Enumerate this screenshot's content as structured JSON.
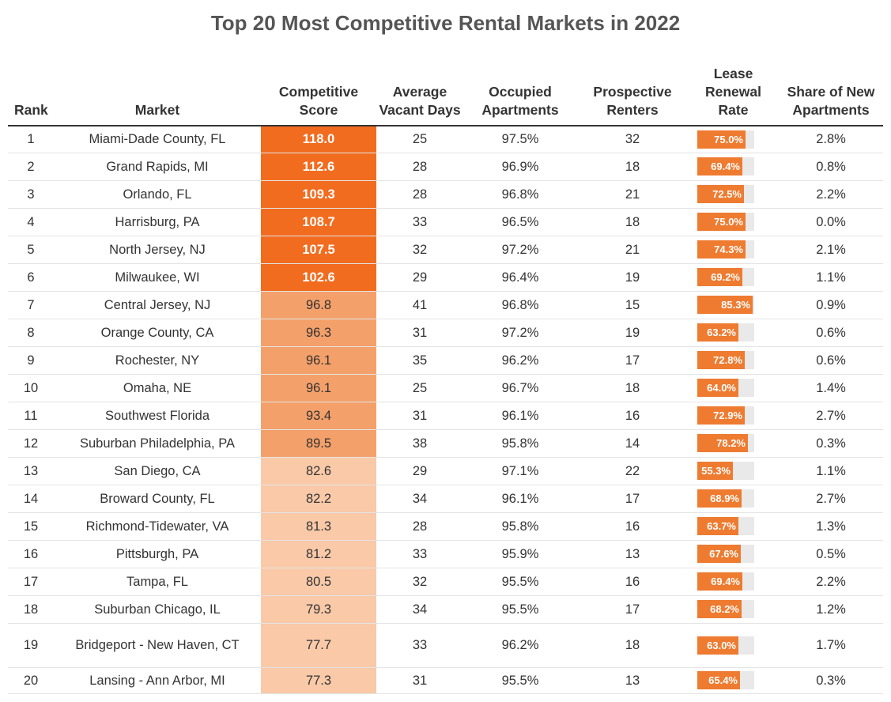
{
  "chart_data": {
    "type": "table",
    "title": "Top 20 Most Competitive Rental Markets in 2022",
    "columns": [
      "Rank",
      "Market",
      "Competitive Score",
      "Average Vacant Days",
      "Occupied Apartments",
      "Prospective Renters",
      "Lease Renewal Rate",
      "Share of New Apartments"
    ],
    "rows": [
      {
        "rank": "1",
        "market": "Miami-Dade County, FL",
        "score": 118.0,
        "score_label": "118.0",
        "vacant_days": "25",
        "occupied": "97.5%",
        "renters": "32",
        "renewal": 75.0,
        "renewal_label": "75.0%",
        "new_share": "2.8%"
      },
      {
        "rank": "2",
        "market": "Grand Rapids, MI",
        "score": 112.6,
        "score_label": "112.6",
        "vacant_days": "28",
        "occupied": "96.9%",
        "renters": "18",
        "renewal": 69.4,
        "renewal_label": "69.4%",
        "new_share": "0.8%"
      },
      {
        "rank": "3",
        "market": "Orlando, FL",
        "score": 109.3,
        "score_label": "109.3",
        "vacant_days": "28",
        "occupied": "96.8%",
        "renters": "21",
        "renewal": 72.5,
        "renewal_label": "72.5%",
        "new_share": "2.2%"
      },
      {
        "rank": "4",
        "market": "Harrisburg, PA",
        "score": 108.7,
        "score_label": "108.7",
        "vacant_days": "33",
        "occupied": "96.5%",
        "renters": "18",
        "renewal": 75.0,
        "renewal_label": "75.0%",
        "new_share": "0.0%"
      },
      {
        "rank": "5",
        "market": "North Jersey, NJ",
        "score": 107.5,
        "score_label": "107.5",
        "vacant_days": "32",
        "occupied": "97.2%",
        "renters": "21",
        "renewal": 74.3,
        "renewal_label": "74.3%",
        "new_share": "2.1%"
      },
      {
        "rank": "6",
        "market": "Milwaukee, WI",
        "score": 102.6,
        "score_label": "102.6",
        "vacant_days": "29",
        "occupied": "96.4%",
        "renters": "19",
        "renewal": 69.2,
        "renewal_label": "69.2%",
        "new_share": "1.1%"
      },
      {
        "rank": "7",
        "market": "Central Jersey, NJ",
        "score": 96.8,
        "score_label": "96.8",
        "vacant_days": "41",
        "occupied": "96.8%",
        "renters": "15",
        "renewal": 85.3,
        "renewal_label": "85.3%",
        "new_share": "0.9%"
      },
      {
        "rank": "8",
        "market": "Orange County, CA",
        "score": 96.3,
        "score_label": "96.3",
        "vacant_days": "31",
        "occupied": "97.2%",
        "renters": "19",
        "renewal": 63.2,
        "renewal_label": "63.2%",
        "new_share": "0.6%"
      },
      {
        "rank": "9",
        "market": "Rochester, NY",
        "score": 96.1,
        "score_label": "96.1",
        "vacant_days": "35",
        "occupied": "96.2%",
        "renters": "17",
        "renewal": 72.8,
        "renewal_label": "72.8%",
        "new_share": "0.6%"
      },
      {
        "rank": "10",
        "market": "Omaha, NE",
        "score": 96.1,
        "score_label": "96.1",
        "vacant_days": "25",
        "occupied": "96.7%",
        "renters": "18",
        "renewal": 64.0,
        "renewal_label": "64.0%",
        "new_share": "1.4%"
      },
      {
        "rank": "11",
        "market": "Southwest Florida",
        "score": 93.4,
        "score_label": "93.4",
        "vacant_days": "31",
        "occupied": "96.1%",
        "renters": "16",
        "renewal": 72.9,
        "renewal_label": "72.9%",
        "new_share": "2.7%"
      },
      {
        "rank": "12",
        "market": "Suburban Philadelphia, PA",
        "score": 89.5,
        "score_label": "89.5",
        "vacant_days": "38",
        "occupied": "95.8%",
        "renters": "14",
        "renewal": 78.2,
        "renewal_label": "78.2%",
        "new_share": "0.3%"
      },
      {
        "rank": "13",
        "market": "San Diego, CA",
        "score": 82.6,
        "score_label": "82.6",
        "vacant_days": "29",
        "occupied": "97.1%",
        "renters": "22",
        "renewal": 55.3,
        "renewal_label": "55.3%",
        "new_share": "1.1%"
      },
      {
        "rank": "14",
        "market": "Broward County, FL",
        "score": 82.2,
        "score_label": "82.2",
        "vacant_days": "34",
        "occupied": "96.1%",
        "renters": "17",
        "renewal": 68.9,
        "renewal_label": "68.9%",
        "new_share": "2.7%"
      },
      {
        "rank": "15",
        "market": "Richmond-Tidewater, VA",
        "score": 81.3,
        "score_label": "81.3",
        "vacant_days": "28",
        "occupied": "95.8%",
        "renters": "16",
        "renewal": 63.7,
        "renewal_label": "63.7%",
        "new_share": "1.3%"
      },
      {
        "rank": "16",
        "market": "Pittsburgh, PA",
        "score": 81.2,
        "score_label": "81.2",
        "vacant_days": "33",
        "occupied": "95.9%",
        "renters": "13",
        "renewal": 67.6,
        "renewal_label": "67.6%",
        "new_share": "0.5%"
      },
      {
        "rank": "17",
        "market": "Tampa, FL",
        "score": 80.5,
        "score_label": "80.5",
        "vacant_days": "32",
        "occupied": "95.5%",
        "renters": "16",
        "renewal": 69.4,
        "renewal_label": "69.4%",
        "new_share": "2.2%"
      },
      {
        "rank": "18",
        "market": "Suburban Chicago, IL",
        "score": 79.3,
        "score_label": "79.3",
        "vacant_days": "34",
        "occupied": "95.5%",
        "renters": "17",
        "renewal": 68.2,
        "renewal_label": "68.2%",
        "new_share": "1.2%"
      },
      {
        "rank": "19",
        "market": "Bridgeport - New Haven, CT",
        "score": 77.7,
        "score_label": "77.7",
        "vacant_days": "33",
        "occupied": "96.2%",
        "renters": "18",
        "renewal": 63.0,
        "renewal_label": "63.0%",
        "new_share": "1.7%"
      },
      {
        "rank": "20",
        "market": "Lansing - Ann Arbor, MI",
        "score": 77.3,
        "score_label": "77.3",
        "vacant_days": "31",
        "occupied": "95.5%",
        "renters": "13",
        "renewal": 65.4,
        "renewal_label": "65.4%",
        "new_share": "0.3%"
      }
    ],
    "renewal_scale": [
      0,
      100
    ],
    "colors": {
      "score_high": "#f26c1f",
      "score_mid": "#f4a06a",
      "score_low": "#f9c9a8",
      "bar_fill": "#ee7b30",
      "bar_track": "#e9e9e9"
    }
  }
}
